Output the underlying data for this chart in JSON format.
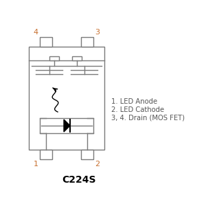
{
  "bg_color": "#ffffff",
  "line_color": "#7a7a7a",
  "pin_label_color": "#c87030",
  "body_text_color": "#555555",
  "title": "C224S",
  "title_fontsize": 10,
  "legend_lines": [
    "1. LED Anode",
    "2. LED Cathode",
    "3, 4. Drain (MOS FET)"
  ],
  "legend_fontsize": 7.2
}
